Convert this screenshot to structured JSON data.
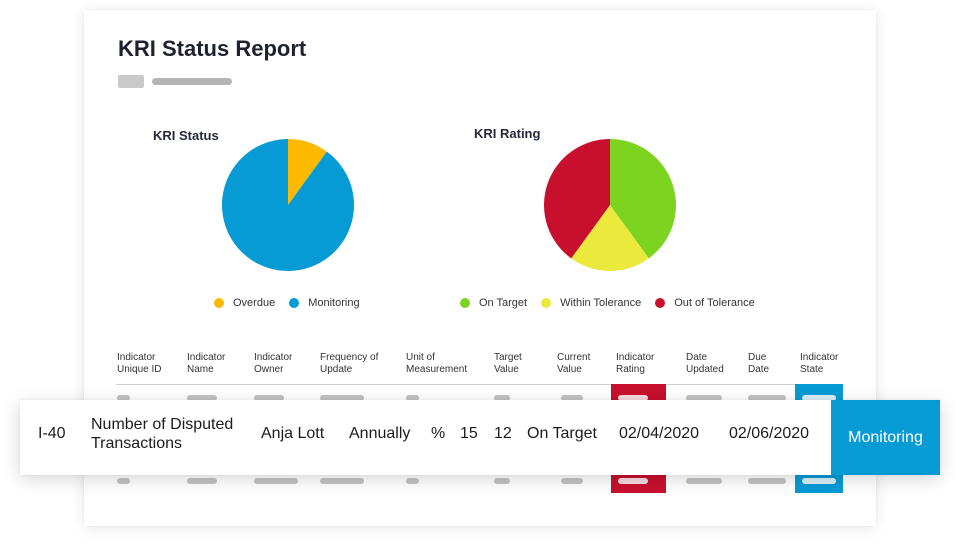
{
  "report": {
    "title": "KRI Status Report"
  },
  "chart_data": [
    {
      "type": "pie",
      "title": "KRI Status",
      "labels": [
        "Overdue",
        "Monitoring"
      ],
      "values": [
        10,
        90
      ],
      "colors": [
        "#fcb900",
        "#079bd6"
      ]
    },
    {
      "type": "pie",
      "title": "KRI Rating",
      "labels": [
        "On Target",
        "Within Tolerance",
        "Out of Tolerance"
      ],
      "values": [
        40,
        20,
        40
      ],
      "colors": [
        "#7cd420",
        "#ebe93c",
        "#c8102e"
      ]
    }
  ],
  "table": {
    "headers": [
      {
        "line1": "Indicator",
        "line2": "Unique ID"
      },
      {
        "line1": "Indicator",
        "line2": "Name"
      },
      {
        "line1": "Indicator",
        "line2": "Owner"
      },
      {
        "line1": "Frequency of",
        "line2": "Update"
      },
      {
        "line1": "Unit of",
        "line2": "Measurement"
      },
      {
        "line1": "Target",
        "line2": "Value"
      },
      {
        "line1": "Current",
        "line2": "Value"
      },
      {
        "line1": "Indicator",
        "line2": "Rating"
      },
      {
        "line1": "Date",
        "line2": "Updated"
      },
      {
        "line1": "Due",
        "line2": "Date"
      },
      {
        "line1": "Indicator",
        "line2": "State"
      }
    ],
    "highlighted_row": {
      "id": "I-40",
      "name": "Number of Disputed Transactions",
      "owner": "Anja Lott",
      "frequency": "Annually",
      "unit": "%",
      "target": "15",
      "current": "12",
      "rating": "On Target",
      "date_updated": "02/04/2020",
      "due_date": "02/06/2020",
      "state": "Monitoring"
    }
  }
}
